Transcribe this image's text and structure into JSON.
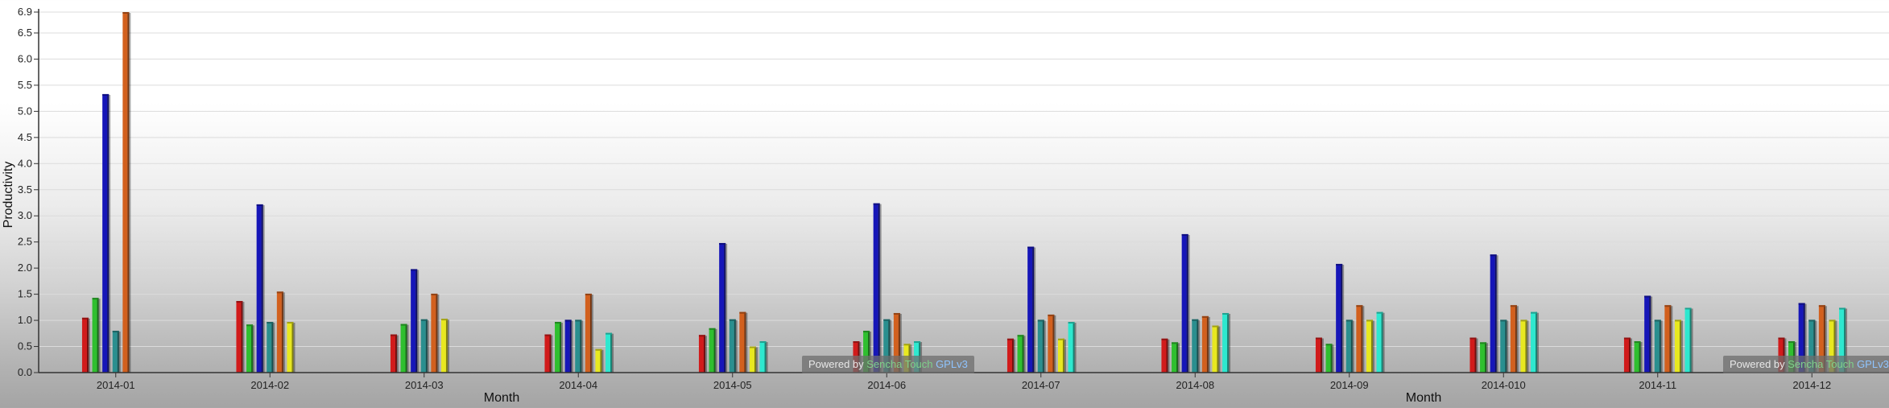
{
  "chart_data": {
    "type": "bar",
    "ylabel": "Productivity",
    "xlabel": "Month",
    "xlabel_repeat": "Month",
    "ylim": [
      0,
      6.9
    ],
    "yticks": [
      "0.0",
      "0.5",
      "1.0",
      "1.5",
      "2.0",
      "2.5",
      "3.0",
      "3.5",
      "4.0",
      "4.5",
      "5.0",
      "5.5",
      "6.0",
      "6.5",
      "6.9"
    ],
    "grid": true,
    "categories": [
      "2014-01",
      "2014-02",
      "2014-03",
      "2014-04",
      "2014-05",
      "2014-06",
      "2014-07",
      "2014-08",
      "2014-09",
      "2014-010",
      "2014-11",
      "2014-12"
    ],
    "series": [
      {
        "color": "#d11b1b",
        "values": [
          1.05,
          1.37,
          0.73,
          0.73,
          0.72,
          0.6,
          0.65,
          0.65,
          0.67,
          0.67,
          0.67,
          0.67
        ]
      },
      {
        "color": "#2fbf2f",
        "values": [
          1.43,
          0.92,
          0.93,
          0.97,
          0.85,
          0.8,
          0.72,
          0.58,
          0.55,
          0.58,
          0.6,
          0.6
        ]
      },
      {
        "color": "#1616b8",
        "values": [
          5.33,
          3.22,
          1.98,
          1.01,
          2.48,
          3.24,
          2.41,
          2.65,
          2.08,
          2.26,
          1.47,
          1.33
        ]
      },
      {
        "color": "#2a8f8f",
        "values": [
          0.8,
          0.97,
          1.02,
          1.01,
          1.02,
          1.02,
          1.01,
          1.02,
          1.01,
          1.01,
          1.01,
          1.01
        ]
      },
      {
        "color": "#d2601e",
        "values": [
          6.9,
          1.55,
          1.51,
          1.51,
          1.16,
          1.14,
          1.11,
          1.08,
          1.29,
          1.29,
          1.29,
          1.29
        ]
      },
      {
        "color": "#e8e820",
        "values": [
          0.0,
          0.97,
          1.03,
          0.45,
          0.5,
          0.55,
          0.65,
          0.9,
          1.01,
          1.01,
          1.01,
          1.01
        ]
      },
      {
        "color": "#2ee8cf",
        "values": [
          0.0,
          0.0,
          0.0,
          0.76,
          0.6,
          0.6,
          0.97,
          1.14,
          1.16,
          1.16,
          1.24,
          1.24
        ]
      }
    ]
  },
  "credits": [
    {
      "prefix": "Powered by ",
      "name": "Sencha Touch",
      "license": "GPLv3"
    },
    {
      "prefix": "Powered by ",
      "name": "Sencha Touch",
      "license": "GPLv3"
    }
  ]
}
